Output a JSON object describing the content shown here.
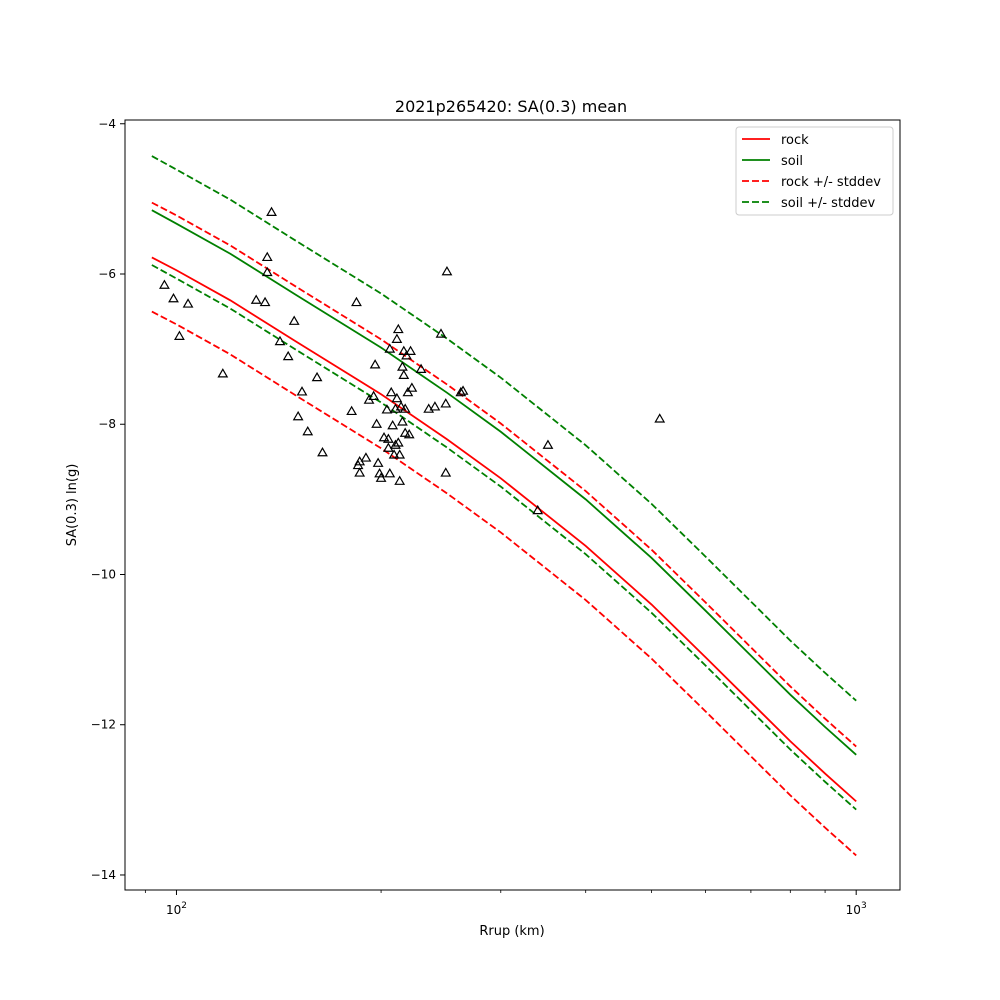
{
  "chart_data": {
    "type": "line",
    "title": "2021p265420: SA(0.3) mean",
    "xlabel": "Rrup (km)",
    "ylabel": "SA(0.3) ln(g)",
    "xscale": "log",
    "xlim": [
      84,
      1160
    ],
    "ylim": [
      -14.2,
      -3.95
    ],
    "x_tick_labels": [
      {
        "value": 100,
        "base": "10",
        "exp": "2"
      },
      {
        "value": 1000,
        "base": "10",
        "exp": "3"
      }
    ],
    "y_ticks": [
      -14,
      -12,
      -10,
      -8,
      -6,
      -4
    ],
    "y_tick_labels": [
      "−14",
      "−12",
      "−10",
      "−8",
      "−6",
      "−4"
    ],
    "legend_position": "top-right",
    "grid": false,
    "series": [
      {
        "name": "rock",
        "color": "#ff0000",
        "dash": "solid",
        "legend": true,
        "x": [
          92,
          100,
          120,
          150,
          200,
          250,
          300,
          400,
          500,
          600,
          700,
          800,
          900,
          1000
        ],
        "y": [
          -5.78,
          -5.95,
          -6.35,
          -6.9,
          -7.6,
          -8.2,
          -8.72,
          -9.62,
          -10.4,
          -11.1,
          -11.7,
          -12.22,
          -12.65,
          -13.02
        ]
      },
      {
        "name": "soil",
        "color": "#008000",
        "dash": "solid",
        "legend": true,
        "x": [
          92,
          100,
          120,
          150,
          200,
          250,
          300,
          400,
          500,
          600,
          700,
          800,
          900,
          1000
        ],
        "y": [
          -5.15,
          -5.33,
          -5.73,
          -6.28,
          -6.98,
          -7.58,
          -8.1,
          -9.0,
          -9.78,
          -10.48,
          -11.08,
          -11.6,
          -12.03,
          -12.4
        ]
      },
      {
        "name": "rock +/- stddev",
        "color": "#ff0000",
        "dash": "dashed",
        "legend": true,
        "x": [
          92,
          100,
          120,
          150,
          200,
          250,
          300,
          400,
          500,
          600,
          700,
          800,
          900,
          1000
        ],
        "y": [
          -5.05,
          -5.22,
          -5.62,
          -6.17,
          -6.87,
          -7.47,
          -7.99,
          -8.89,
          -9.67,
          -10.37,
          -10.97,
          -11.49,
          -11.92,
          -12.29
        ]
      },
      {
        "name": "rock +/- stddev",
        "color": "#ff0000",
        "dash": "dashed",
        "legend": false,
        "x": [
          92,
          100,
          120,
          150,
          200,
          250,
          300,
          400,
          500,
          600,
          700,
          800,
          900,
          1000
        ],
        "y": [
          -6.5,
          -6.67,
          -7.07,
          -7.62,
          -8.32,
          -8.92,
          -9.44,
          -10.34,
          -11.12,
          -11.82,
          -12.42,
          -12.94,
          -13.37,
          -13.74
        ]
      },
      {
        "name": "soil +/- stddev",
        "color": "#008000",
        "dash": "dashed",
        "legend": true,
        "x": [
          92,
          100,
          120,
          150,
          200,
          250,
          300,
          400,
          500,
          600,
          700,
          800,
          900,
          1000
        ],
        "y": [
          -4.43,
          -4.61,
          -5.01,
          -5.56,
          -6.26,
          -6.86,
          -7.38,
          -8.28,
          -9.06,
          -9.76,
          -10.36,
          -10.88,
          -11.31,
          -11.68
        ]
      },
      {
        "name": "soil +/- stddev",
        "color": "#008000",
        "dash": "dashed",
        "legend": false,
        "x": [
          92,
          100,
          120,
          150,
          200,
          250,
          300,
          400,
          500,
          600,
          700,
          800,
          900,
          1000
        ],
        "y": [
          -5.88,
          -6.06,
          -6.46,
          -7.01,
          -7.71,
          -8.31,
          -8.83,
          -9.73,
          -10.51,
          -11.21,
          -11.81,
          -12.33,
          -12.76,
          -13.13
        ]
      }
    ],
    "observations": {
      "marker": "triangle",
      "color": "#000000",
      "points": [
        [
          96,
          -6.15
        ],
        [
          99,
          -6.33
        ],
        [
          101,
          -6.83
        ],
        [
          104,
          -6.4
        ],
        [
          117,
          -7.33
        ],
        [
          131,
          -6.35
        ],
        [
          136,
          -5.98
        ],
        [
          138,
          -5.18
        ],
        [
          136,
          -5.78
        ],
        [
          135,
          -6.38
        ],
        [
          142,
          -6.9
        ],
        [
          146,
          -7.1
        ],
        [
          149,
          -6.63
        ],
        [
          151,
          -7.9
        ],
        [
          153,
          -7.57
        ],
        [
          156,
          -8.1
        ],
        [
          161,
          -7.38
        ],
        [
          164,
          -8.38
        ],
        [
          181,
          -7.83
        ],
        [
          184,
          -6.38
        ],
        [
          185,
          -8.55
        ],
        [
          186,
          -8.5
        ],
        [
          186,
          -8.65
        ],
        [
          190,
          -8.45
        ],
        [
          192,
          -7.68
        ],
        [
          195,
          -7.63
        ],
        [
          196,
          -7.21
        ],
        [
          197,
          -8.0
        ],
        [
          198,
          -8.52
        ],
        [
          199,
          -8.66
        ],
        [
          200,
          -8.72
        ],
        [
          202,
          -8.18
        ],
        [
          204,
          -7.81
        ],
        [
          205,
          -8.2
        ],
        [
          205,
          -8.32
        ],
        [
          206,
          -7.0
        ],
        [
          206,
          -8.66
        ],
        [
          207,
          -7.58
        ],
        [
          208,
          -8.02
        ],
        [
          209,
          -8.41
        ],
        [
          210,
          -8.28
        ],
        [
          210,
          -7.8
        ],
        [
          211,
          -7.66
        ],
        [
          211,
          -6.87
        ],
        [
          212,
          -8.25
        ],
        [
          212,
          -6.74
        ],
        [
          213,
          -8.41
        ],
        [
          213,
          -8.76
        ],
        [
          214,
          -7.77
        ],
        [
          215,
          -7.97
        ],
        [
          215,
          -7.24
        ],
        [
          216,
          -7.35
        ],
        [
          216,
          -7.03
        ],
        [
          217,
          -7.8
        ],
        [
          217,
          -8.12
        ],
        [
          218,
          -7.09
        ],
        [
          219,
          -7.58
        ],
        [
          220,
          -8.14
        ],
        [
          221,
          -7.03
        ],
        [
          222,
          -7.52
        ],
        [
          229,
          -7.27
        ],
        [
          235,
          -7.8
        ],
        [
          240,
          -7.77
        ],
        [
          245,
          -6.8
        ],
        [
          249,
          -7.73
        ],
        [
          249,
          -8.65
        ],
        [
          250,
          -5.97
        ],
        [
          262,
          -7.58
        ],
        [
          264,
          -7.56
        ],
        [
          340,
          -9.15
        ],
        [
          352,
          -8.28
        ],
        [
          514,
          -7.93
        ]
      ]
    }
  }
}
